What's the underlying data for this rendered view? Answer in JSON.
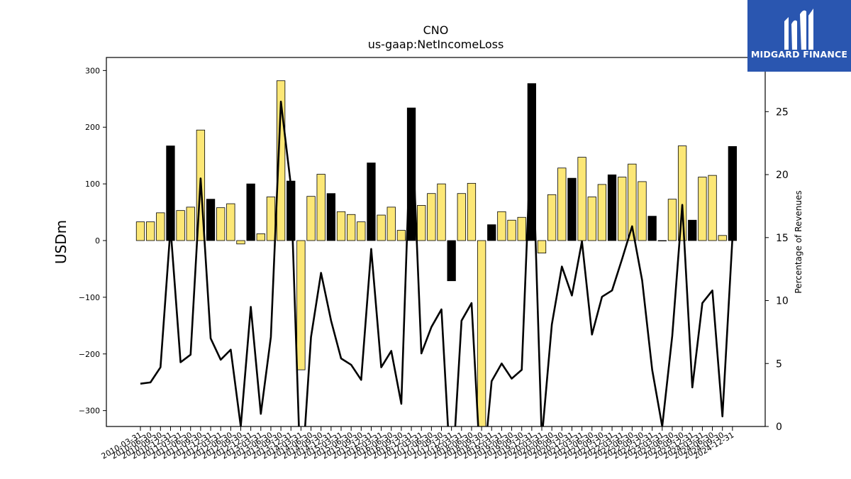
{
  "chart_data": {
    "type": "bar",
    "title": "CNO",
    "subtitle": "us-gaap:NetIncomeLoss",
    "ylabel": "USDm",
    "y2label": "Percentage of Revenues",
    "ylim": [
      -328,
      323
    ],
    "y2lim": [
      0,
      29.3
    ],
    "yticks": [
      -300,
      -200,
      -100,
      0,
      100,
      200,
      300
    ],
    "y2ticks": [
      0,
      5,
      10,
      15,
      20,
      25
    ],
    "grid": false,
    "categories": [
      "2010-03-31",
      "2010-06-30",
      "2010-09-30",
      "2010-12-31",
      "2011-03-31",
      "2011-06-30",
      "2011-09-30",
      "2011-12-31",
      "2012-03-31",
      "2012-06-30",
      "2012-09-30",
      "2012-12-31",
      "2013-03-31",
      "2013-06-30",
      "2013-09-30",
      "2013-12-31",
      "2014-03-31",
      "2014-06-30",
      "2014-09-30",
      "2014-12-31",
      "2015-03-31",
      "2015-06-30",
      "2015-09-30",
      "2015-12-31",
      "2016-03-31",
      "2016-06-30",
      "2016-09-30",
      "2016-12-31",
      "2017-03-31",
      "2017-06-30",
      "2017-09-30",
      "2017-12-31",
      "2018-03-31",
      "2018-06-30",
      "2018-09-30",
      "2018-12-31",
      "2019-03-31",
      "2019-06-30",
      "2019-09-30",
      "2019-12-31",
      "2020-03-31",
      "2020-06-30",
      "2020-09-30",
      "2020-12-31",
      "2021-03-31",
      "2021-06-30",
      "2021-09-30",
      "2021-12-31",
      "2022-03-31",
      "2022-06-30",
      "2022-09-30",
      "2022-12-31",
      "2023-03-31",
      "2023-06-30",
      "2023-09-30",
      "2023-12-31",
      "2024-03-31",
      "2024-06-30",
      "2024-09-30",
      "2024-12-31"
    ],
    "series": [
      {
        "kind": "bar",
        "axis": "left",
        "values": [
          33,
          33,
          49,
          167,
          53,
          59,
          195,
          73,
          58,
          65,
          -6,
          100,
          12,
          77,
          282,
          105,
          -228,
          78,
          117,
          83,
          51,
          46,
          33,
          137,
          45,
          59,
          18,
          234,
          62,
          83,
          100,
          -71,
          83,
          101,
          -328,
          28,
          51,
          36,
          41,
          277,
          -22,
          81,
          128,
          110,
          147,
          77,
          99,
          116,
          112,
          135,
          104,
          43,
          0,
          73,
          167,
          36,
          112,
          115,
          9,
          166
        ],
        "colors": [
          "#fce776",
          "#000000"
        ],
        "color_pattern": [
          "y",
          "y",
          "y",
          "k",
          "y",
          "y",
          "y",
          "k",
          "y",
          "y",
          "y",
          "k",
          "y",
          "y",
          "y",
          "k",
          "y",
          "y",
          "y",
          "k",
          "y",
          "y",
          "y",
          "k",
          "y",
          "y",
          "y",
          "k",
          "y",
          "y",
          "y",
          "k",
          "y",
          "y",
          "y",
          "k",
          "y",
          "y",
          "y",
          "k",
          "y",
          "y",
          "y",
          "k",
          "y",
          "y",
          "y",
          "k",
          "y",
          "y",
          "y",
          "k",
          "y",
          "y",
          "y",
          "k",
          "y",
          "y",
          "y",
          "k"
        ]
      },
      {
        "kind": "line",
        "axis": "right",
        "color": "#000000",
        "values": [
          3.4,
          3.5,
          4.7,
          15.8,
          5.1,
          5.7,
          19.7,
          7.0,
          5.3,
          6.1,
          0.0,
          9.5,
          1.0,
          7.1,
          25.8,
          19.1,
          -5.0,
          7.1,
          12.2,
          8.4,
          5.4,
          4.9,
          3.7,
          14.1,
          4.7,
          6.0,
          1.8,
          25.2,
          5.8,
          7.9,
          9.3,
          -5.0,
          8.4,
          9.8,
          -5.0,
          3.6,
          5.0,
          3.8,
          4.5,
          24.4,
          -1.0,
          8.1,
          12.7,
          10.4,
          14.7,
          7.3,
          10.3,
          10.8,
          13.3,
          15.9,
          11.6,
          4.5,
          0.0,
          7.2,
          17.6,
          3.1,
          9.8,
          10.8,
          0.8,
          15.0
        ]
      }
    ]
  },
  "logo": {
    "text": "MIDGARD FINANCE",
    "mark_color": "#ffffff",
    "background": "#2a56b0"
  }
}
